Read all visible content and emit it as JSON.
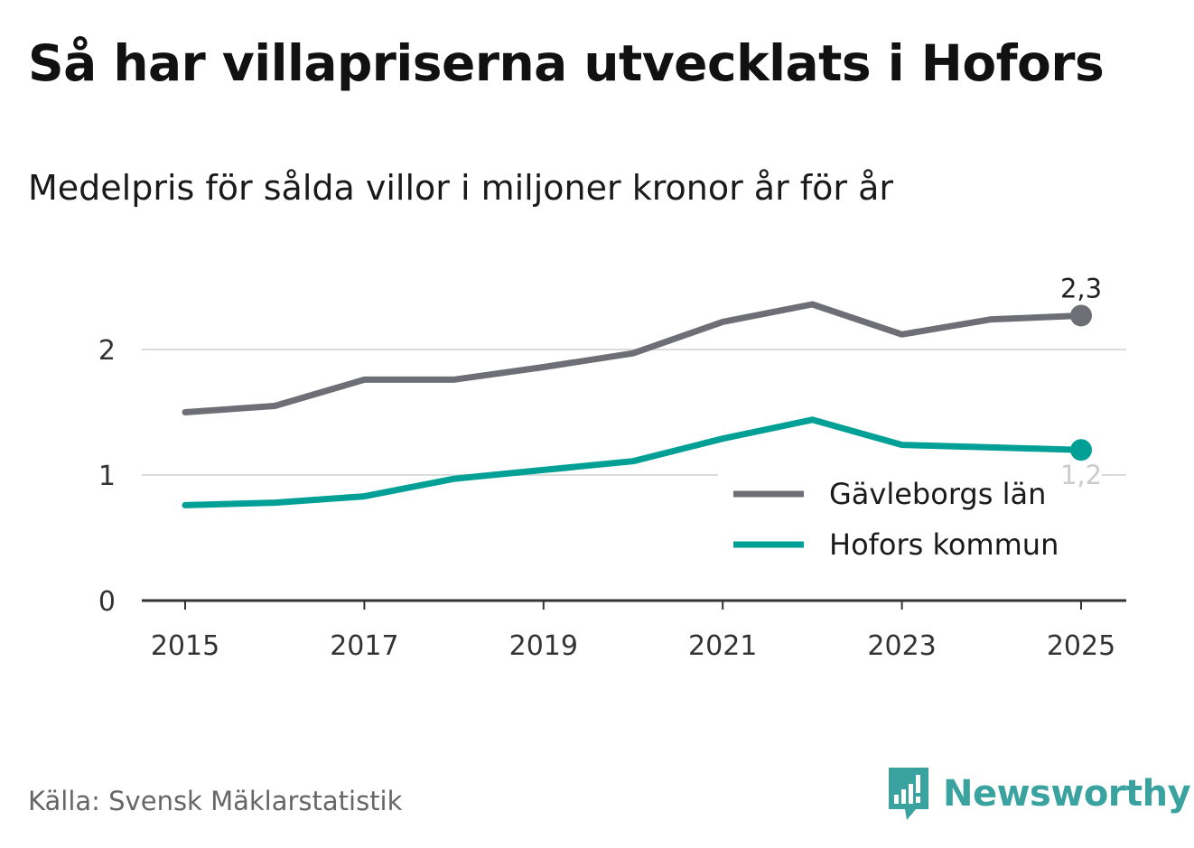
{
  "title": "Så har villapriserna utvecklats i Hofors",
  "subtitle": "Medelpris för sålda villor i miljoner kronor år för år",
  "source": "Källa: Svensk Mäklarstatistik",
  "brand": {
    "name": "Newsworthy",
    "logo_icon": "newsworthy-logo-icon",
    "color": "#3aa3a0"
  },
  "chart_data": {
    "type": "line",
    "title": "Så har villapriserna utvecklats i Hofors",
    "subtitle": "Medelpris för sålda villor i miljoner kronor år för år",
    "xlabel": "",
    "ylabel": "",
    "x": [
      2015,
      2016,
      2017,
      2018,
      2019,
      2020,
      2021,
      2022,
      2023,
      2024,
      2025
    ],
    "xticks": [
      "2015",
      "2017",
      "2019",
      "2021",
      "2023",
      "2025"
    ],
    "yticks": [
      "0",
      "1",
      "2"
    ],
    "ylim": [
      0,
      2.6
    ],
    "grid": true,
    "legend_position": "bottom-right",
    "series": [
      {
        "name": "Gävleborgs län",
        "color": "#6e6e76",
        "values": [
          1.5,
          1.55,
          1.76,
          1.76,
          1.86,
          1.97,
          2.22,
          2.36,
          2.12,
          2.24,
          2.27
        ],
        "end_label": "2,3"
      },
      {
        "name": "Hofors kommun",
        "color": "#00a096",
        "values": [
          0.76,
          0.78,
          0.83,
          0.97,
          1.04,
          1.11,
          1.29,
          1.44,
          1.24,
          1.22,
          1.2
        ],
        "end_label": "1,2"
      }
    ]
  }
}
